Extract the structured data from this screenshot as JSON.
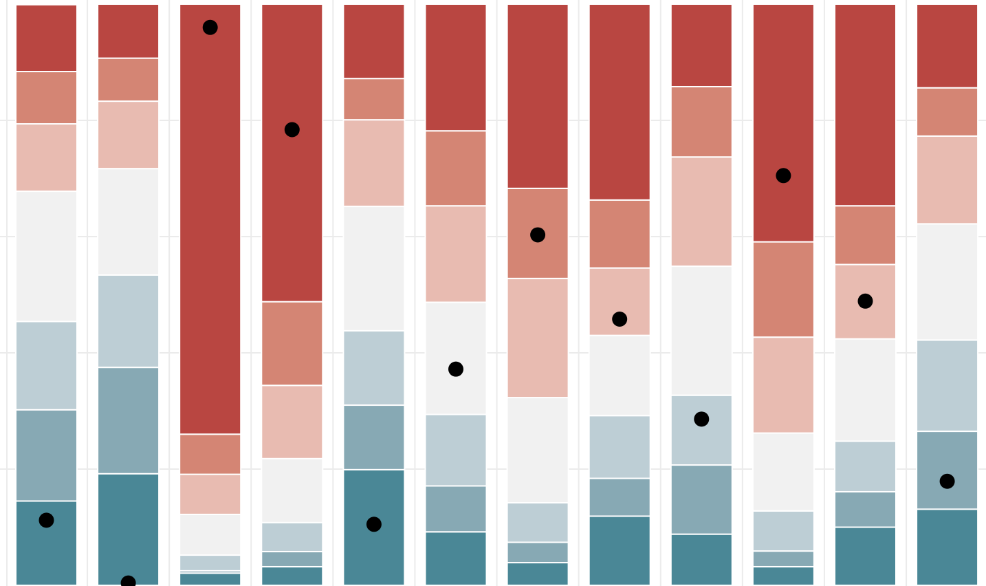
{
  "chart_data": {
    "type": "bar",
    "stacked": true,
    "normalized": true,
    "ylim": [
      0,
      1
    ],
    "grid": true,
    "categories": [
      "",
      "",
      "",
      "",
      "",
      "",
      "",
      "",
      "",
      "",
      "",
      ""
    ],
    "series": [
      {
        "color": "#4a8796",
        "values": [
          0.145,
          0.192,
          0.021,
          0.032,
          0.199,
          0.092,
          0.039,
          0.119,
          0.088,
          0.032,
          0.1,
          0.131
        ]
      },
      {
        "color": "#87a9b4",
        "values": [
          0.157,
          0.183,
          0.004,
          0.026,
          0.111,
          0.079,
          0.035,
          0.065,
          0.119,
          0.027,
          0.061,
          0.134
        ]
      },
      {
        "color": "#bdced5",
        "values": [
          0.152,
          0.159,
          0.027,
          0.05,
          0.128,
          0.123,
          0.068,
          0.108,
          0.12,
          0.069,
          0.087,
          0.157
        ]
      },
      {
        "color": "#f1f1f1",
        "values": [
          0.224,
          0.183,
          0.07,
          0.11,
          0.214,
          0.193,
          0.181,
          0.138,
          0.222,
          0.134,
          0.176,
          0.2
        ]
      },
      {
        "color": "#e8bbb1",
        "values": [
          0.116,
          0.116,
          0.069,
          0.126,
          0.149,
          0.166,
          0.205,
          0.116,
          0.188,
          0.165,
          0.128,
          0.151
        ]
      },
      {
        "color": "#d48574",
        "values": [
          0.09,
          0.074,
          0.069,
          0.144,
          0.071,
          0.129,
          0.155,
          0.117,
          0.121,
          0.164,
          0.101,
          0.083
        ]
      },
      {
        "color": "#b94641",
        "values": [
          0.115,
          0.093,
          0.74,
          0.512,
          0.128,
          0.218,
          0.317,
          0.337,
          0.142,
          0.409,
          0.347,
          0.144
        ]
      }
    ],
    "markers": [
      0.112,
      0.004,
      0.96,
      0.784,
      0.105,
      0.372,
      0.603,
      0.458,
      0.286,
      0.705,
      0.489,
      0.179
    ]
  }
}
